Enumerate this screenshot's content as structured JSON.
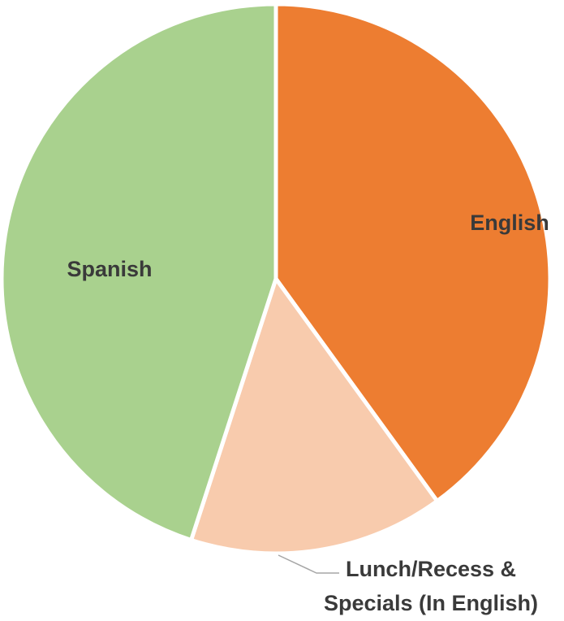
{
  "chart_data": {
    "type": "pie",
    "start_angle_deg": 0,
    "direction": "clockwise",
    "slices": [
      {
        "label": "English",
        "value": 40,
        "color": "#ED7D31"
      },
      {
        "label": "Lunch/Recess & Specials (In English)",
        "label_lines": [
          "Lunch/Recess &",
          "Specials (In English)"
        ],
        "value": 15,
        "color": "#F8CBAD"
      },
      {
        "label": "Spanish",
        "value": 45,
        "color": "#A9D18E"
      }
    ],
    "title": "",
    "legend": "none",
    "data_labels": "category-name"
  }
}
